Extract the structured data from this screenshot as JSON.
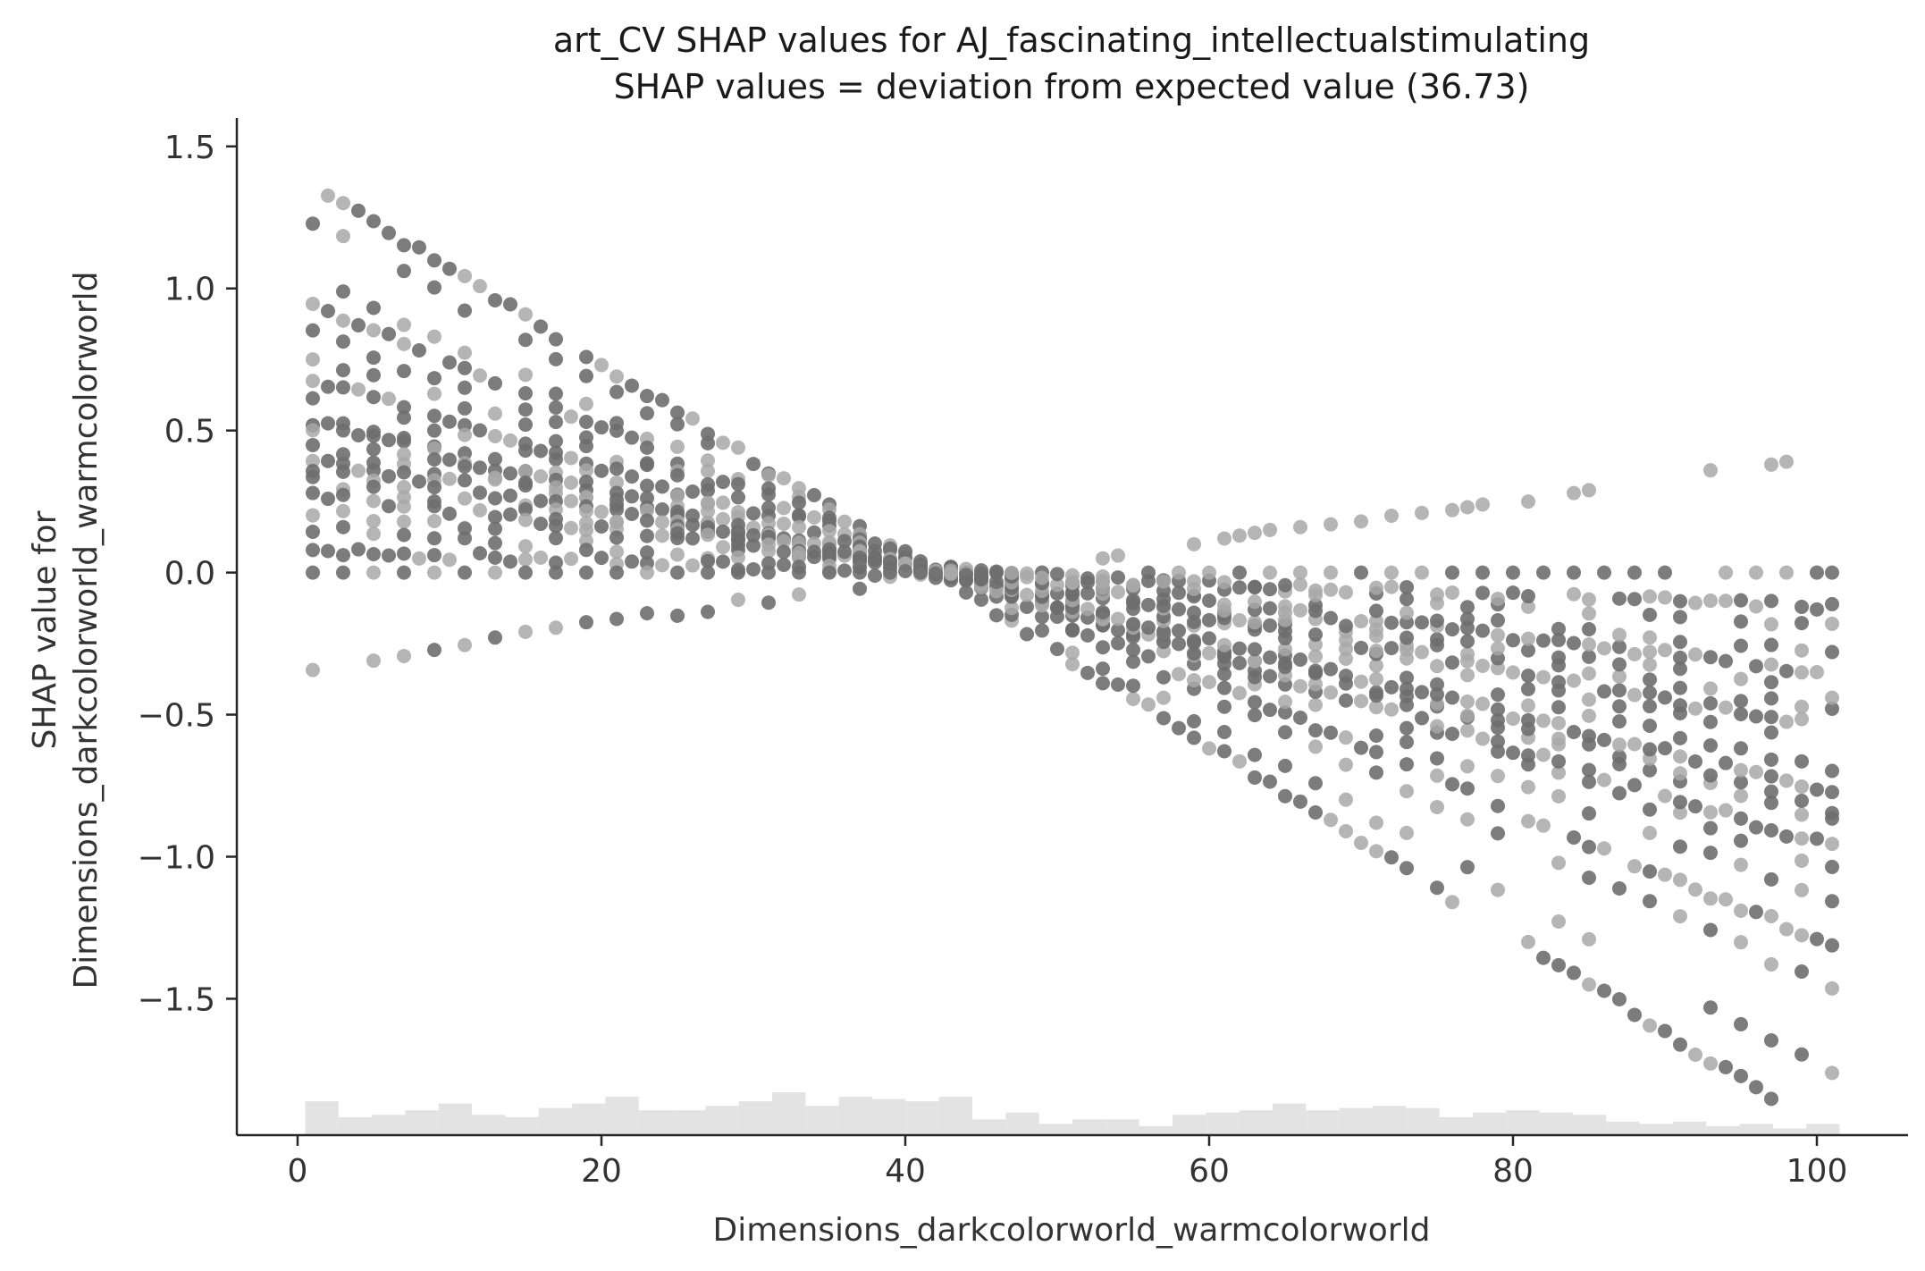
{
  "chart_data": {
    "type": "scatter",
    "title_line1": "art_CV SHAP values for AJ_fascinating_intellectualstimulating",
    "title_line2": "SHAP values = deviation from expected value (36.73)",
    "xlabel": "Dimensions_darkcolorworld_warmcolorworld",
    "ylabel_line1": "SHAP value for",
    "ylabel_line2": "Dimensions_darkcolorworld_warmcolorworld",
    "xlim": [
      -4,
      106
    ],
    "ylim": [
      -1.98,
      1.6
    ],
    "x_ticks": [
      0,
      20,
      40,
      60,
      80,
      100
    ],
    "x_tick_labels": [
      "0",
      "20",
      "40",
      "60",
      "80",
      "100"
    ],
    "y_ticks": [
      1.5,
      1.0,
      0.5,
      0.0,
      -0.5,
      -1.0,
      -1.5
    ],
    "y_tick_labels": [
      "1.5",
      "1.0",
      "0.5",
      "0.0",
      "−0.5",
      "−1.0",
      "−1.5"
    ],
    "grid": false,
    "colors": {
      "dark_point": "#6e6e6e",
      "light_point": "#a8a8a8",
      "histogram": "#e3e3e3",
      "axis": "#262626"
    },
    "series": [
      {
        "rays": [
          {
            "slope": -0.0335,
            "intercept": 1.4
          },
          {
            "slope": -0.03,
            "intercept": 1.26
          },
          {
            "slope": -0.025,
            "intercept": 1.06
          },
          {
            "slope": -0.0225,
            "intercept": 0.96
          },
          {
            "slope": -0.02,
            "intercept": 0.86
          },
          {
            "slope": -0.018,
            "intercept": 0.78
          },
          {
            "slope": -0.0165,
            "intercept": 0.7
          },
          {
            "slope": -0.015,
            "intercept": 0.64
          },
          {
            "slope": -0.014,
            "intercept": 0.58
          },
          {
            "slope": -0.013,
            "intercept": 0.54
          },
          {
            "slope": -0.0118,
            "intercept": 0.5
          },
          {
            "slope": -0.0105,
            "intercept": 0.45
          },
          {
            "slope": -0.0095,
            "intercept": 0.41
          },
          {
            "slope": -0.0085,
            "intercept": 0.37
          },
          {
            "slope": -0.0075,
            "intercept": 0.33
          },
          {
            "slope": -0.0063,
            "intercept": 0.28
          },
          {
            "slope": -0.005,
            "intercept": 0.22
          },
          {
            "slope": -0.0035,
            "intercept": 0.16
          },
          {
            "slope": -0.002,
            "intercept": 0.08
          },
          {
            "slope": 0.008,
            "intercept": -0.34
          }
        ]
      }
    ],
    "zero_line_points": [
      1,
      3,
      5,
      7,
      9,
      11,
      13,
      15,
      17,
      19,
      21,
      23,
      25,
      27,
      29,
      31,
      33,
      35,
      37,
      39,
      41,
      56,
      58,
      60,
      62,
      64,
      66,
      68,
      70,
      72,
      74,
      76,
      78,
      80,
      82,
      84,
      86,
      88,
      90,
      94,
      96,
      98,
      100,
      101
    ],
    "upper_outliers": [
      [
        59,
        0.1
      ],
      [
        61,
        0.12
      ],
      [
        62,
        0.13
      ],
      [
        63,
        0.14
      ],
      [
        64,
        0.15
      ],
      [
        66,
        0.16
      ],
      [
        68,
        0.17
      ],
      [
        70,
        0.18
      ],
      [
        72,
        0.2
      ],
      [
        74,
        0.21
      ],
      [
        76,
        0.22
      ],
      [
        77,
        0.23
      ],
      [
        78,
        0.24
      ],
      [
        81,
        0.25
      ],
      [
        84,
        0.28
      ],
      [
        85,
        0.29
      ],
      [
        93,
        0.36
      ],
      [
        97,
        0.38
      ],
      [
        98,
        0.39
      ],
      [
        53,
        0.05
      ],
      [
        54,
        0.06
      ]
    ],
    "histogram": [
      0.3,
      0.16,
      0.18,
      0.22,
      0.28,
      0.18,
      0.16,
      0.24,
      0.28,
      0.34,
      0.22,
      0.22,
      0.26,
      0.3,
      0.38,
      0.26,
      0.34,
      0.32,
      0.3,
      0.34,
      0.14,
      0.2,
      0.1,
      0.14,
      0.14,
      0.08,
      0.18,
      0.2,
      0.22,
      0.28,
      0.22,
      0.24,
      0.26,
      0.24,
      0.16,
      0.2,
      0.22,
      0.2,
      0.18,
      0.12,
      0.1,
      0.12,
      0.08,
      0.1,
      0.06,
      0.1
    ]
  }
}
